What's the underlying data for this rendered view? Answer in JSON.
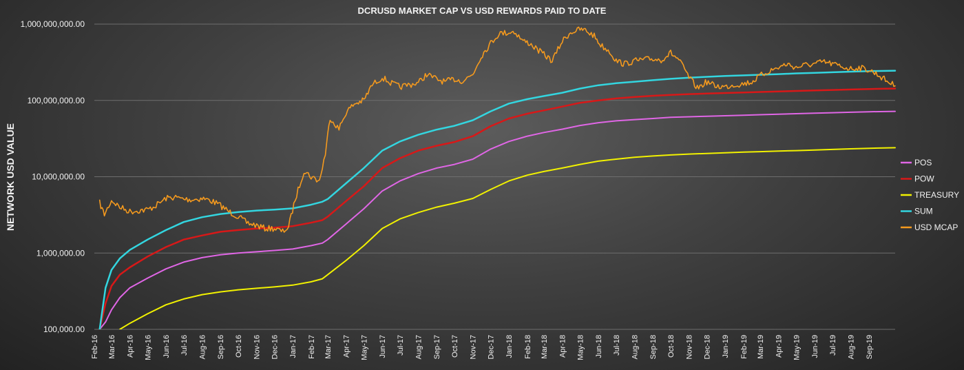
{
  "chart_data": {
    "type": "line",
    "title": "DCRUSD MARKET CAP VS USD REWARDS PAID TO DATE",
    "ylabel": "NETWORK USD VALUE",
    "xlabel": "",
    "y_scale": "log",
    "ylim": [
      100000,
      1000000000
    ],
    "grid": "horizontal major gridlines",
    "legend_position": "right",
    "y_ticks": [
      "100,000.00",
      "1,000,000.00",
      "10,000,000.00",
      "100,000,000.00",
      "1,000,000,000.00"
    ],
    "x_ticks": [
      "Feb-16",
      "Mar-16",
      "Apr-16",
      "May-16",
      "Jun-16",
      "Jul-16",
      "Aug-16",
      "Sep-16",
      "Oct-16",
      "Nov-16",
      "Dec-16",
      "Jan-17",
      "Feb-17",
      "Mar-17",
      "Apr-17",
      "May-17",
      "Jun-17",
      "Jul-17",
      "Aug-17",
      "Sep-17",
      "Oct-17",
      "Nov-17",
      "Dec-17",
      "Jan-18",
      "Feb-18",
      "Mar-18",
      "Apr-18",
      "May-18",
      "Jun-18",
      "Jul-18",
      "Aug-18",
      "Sep-18",
      "Oct-18",
      "Nov-18",
      "Dec-18",
      "Jan-19",
      "Feb-19",
      "Mar-19",
      "Apr-19",
      "May-19",
      "Jun-19",
      "Jul-19",
      "Aug-19",
      "Sep-19"
    ],
    "x_range": [
      "2016-02-01",
      "2019-10-15"
    ],
    "series": [
      {
        "name": "POS",
        "color": "#e066e6",
        "width": 2,
        "x": [
          "2016-02-10",
          "2016-02-20",
          "2016-03-01",
          "2016-03-15",
          "2016-04-01",
          "2016-05-01",
          "2016-06-01",
          "2016-07-01",
          "2016-08-01",
          "2016-09-01",
          "2016-10-01",
          "2016-11-01",
          "2016-12-01",
          "2017-01-01",
          "2017-02-01",
          "2017-02-20",
          "2017-03-01",
          "2017-04-01",
          "2017-05-01",
          "2017-06-01",
          "2017-07-01",
          "2017-08-01",
          "2017-09-01",
          "2017-10-01",
          "2017-11-01",
          "2017-12-01",
          "2018-01-01",
          "2018-02-01",
          "2018-03-01",
          "2018-04-01",
          "2018-05-01",
          "2018-06-01",
          "2018-07-01",
          "2018-08-01",
          "2018-09-01",
          "2018-10-01",
          "2018-11-01",
          "2018-12-01",
          "2019-01-01",
          "2019-02-01",
          "2019-03-01",
          "2019-04-01",
          "2019-05-01",
          "2019-06-01",
          "2019-07-01",
          "2019-08-01",
          "2019-09-01",
          "2019-10-15"
        ],
        "y": [
          80000,
          125000,
          180000,
          260000,
          350000,
          470000,
          620000,
          760000,
          870000,
          950000,
          1000000,
          1040000,
          1080000,
          1130000,
          1250000,
          1350000,
          1500000,
          2400000,
          3800000,
          6500000,
          8800000,
          11000000,
          13000000,
          14500000,
          17000000,
          23000000,
          29000000,
          34000000,
          38000000,
          42000000,
          47000000,
          51000000,
          54000000,
          56000000,
          58000000,
          60000000,
          61000000,
          62000000,
          63000000,
          64000000,
          65000000,
          66000000,
          67000000,
          68000000,
          69000000,
          70000000,
          71000000,
          72000000
        ]
      },
      {
        "name": "POW",
        "color": "#d81818",
        "width": 2.5,
        "x": [
          "2016-02-10",
          "2016-02-20",
          "2016-03-01",
          "2016-03-15",
          "2016-04-01",
          "2016-05-01",
          "2016-06-01",
          "2016-07-01",
          "2016-08-01",
          "2016-09-01",
          "2016-10-01",
          "2016-11-01",
          "2016-12-01",
          "2017-01-01",
          "2017-02-01",
          "2017-02-20",
          "2017-03-01",
          "2017-04-01",
          "2017-05-01",
          "2017-06-01",
          "2017-07-01",
          "2017-08-01",
          "2017-09-01",
          "2017-10-01",
          "2017-11-01",
          "2017-12-01",
          "2018-01-01",
          "2018-02-01",
          "2018-03-01",
          "2018-04-01",
          "2018-05-01",
          "2018-06-01",
          "2018-07-01",
          "2018-08-01",
          "2018-09-01",
          "2018-10-01",
          "2018-11-01",
          "2018-12-01",
          "2019-01-01",
          "2019-02-01",
          "2019-03-01",
          "2019-04-01",
          "2019-05-01",
          "2019-06-01",
          "2019-07-01",
          "2019-08-01",
          "2019-09-01",
          "2019-10-15"
        ],
        "y": [
          90000,
          220000,
          370000,
          520000,
          650000,
          900000,
          1200000,
          1500000,
          1700000,
          1900000,
          2000000,
          2100000,
          2150000,
          2250000,
          2500000,
          2700000,
          3000000,
          4800000,
          7500000,
          13000000,
          17500000,
          22000000,
          25500000,
          28500000,
          34000000,
          46000000,
          58000000,
          67000000,
          74000000,
          83000000,
          93000000,
          100000000,
          106000000,
          111000000,
          115000000,
          118000000,
          121000000,
          123000000,
          125000000,
          127000000,
          129000000,
          131000000,
          133000000,
          135000000,
          137000000,
          139000000,
          141000000,
          143000000
        ]
      },
      {
        "name": "TREASURY",
        "color": "#f2f200",
        "width": 2,
        "x": [
          "2016-03-15",
          "2016-04-01",
          "2016-05-01",
          "2016-06-01",
          "2016-07-01",
          "2016-08-01",
          "2016-09-01",
          "2016-10-01",
          "2016-11-01",
          "2016-12-01",
          "2017-01-01",
          "2017-02-01",
          "2017-02-20",
          "2017-03-01",
          "2017-04-01",
          "2017-05-01",
          "2017-06-01",
          "2017-07-01",
          "2017-08-01",
          "2017-09-01",
          "2017-10-01",
          "2017-11-01",
          "2017-12-01",
          "2018-01-01",
          "2018-02-01",
          "2018-03-01",
          "2018-04-01",
          "2018-05-01",
          "2018-06-01",
          "2018-07-01",
          "2018-08-01",
          "2018-09-01",
          "2018-10-01",
          "2018-11-01",
          "2018-12-01",
          "2019-01-01",
          "2019-02-01",
          "2019-03-01",
          "2019-04-01",
          "2019-05-01",
          "2019-06-01",
          "2019-07-01",
          "2019-08-01",
          "2019-09-01",
          "2019-10-15"
        ],
        "y": [
          100000,
          120000,
          160000,
          210000,
          250000,
          285000,
          310000,
          330000,
          345000,
          360000,
          380000,
          420000,
          460000,
          520000,
          800000,
          1250000,
          2100000,
          2800000,
          3400000,
          4000000,
          4500000,
          5200000,
          6800000,
          8800000,
          10500000,
          11700000,
          13000000,
          14500000,
          16000000,
          17000000,
          18000000,
          18700000,
          19300000,
          19800000,
          20200000,
          20600000,
          21000000,
          21300000,
          21700000,
          22000000,
          22400000,
          22800000,
          23200000,
          23600000,
          24000000
        ]
      },
      {
        "name": "SUM",
        "color": "#33d6e0",
        "width": 2.5,
        "x": [
          "2016-02-10",
          "2016-02-20",
          "2016-03-01",
          "2016-03-15",
          "2016-04-01",
          "2016-05-01",
          "2016-06-01",
          "2016-07-01",
          "2016-08-01",
          "2016-09-01",
          "2016-10-01",
          "2016-11-01",
          "2016-12-01",
          "2017-01-01",
          "2017-02-01",
          "2017-02-20",
          "2017-03-01",
          "2017-04-01",
          "2017-05-01",
          "2017-06-01",
          "2017-07-01",
          "2017-08-01",
          "2017-09-01",
          "2017-10-01",
          "2017-11-01",
          "2017-12-01",
          "2018-01-01",
          "2018-02-01",
          "2018-03-01",
          "2018-04-01",
          "2018-05-01",
          "2018-06-01",
          "2018-07-01",
          "2018-08-01",
          "2018-09-01",
          "2018-10-01",
          "2018-11-01",
          "2018-12-01",
          "2019-01-01",
          "2019-02-01",
          "2019-03-01",
          "2019-04-01",
          "2019-05-01",
          "2019-06-01",
          "2019-07-01",
          "2019-08-01",
          "2019-09-01",
          "2019-10-15"
        ],
        "y": [
          100000,
          350000,
          600000,
          850000,
          1100000,
          1500000,
          2000000,
          2550000,
          2950000,
          3250000,
          3450000,
          3600000,
          3700000,
          3850000,
          4300000,
          4700000,
          5100000,
          8200000,
          13000000,
          22000000,
          29000000,
          35500000,
          41500000,
          46500000,
          55000000,
          72000000,
          91000000,
          104000000,
          114000000,
          126000000,
          143000000,
          158000000,
          168000000,
          176000000,
          184000000,
          192000000,
          199000000,
          204000000,
          209000000,
          213000000,
          217000000,
          221000000,
          226000000,
          230000000,
          234000000,
          238000000,
          242000000,
          245000000
        ]
      },
      {
        "name": "USD MCAP",
        "color": "#f59a1e",
        "width": 1.6,
        "noisy": true,
        "x": [
          "2016-02-10",
          "2016-02-18",
          "2016-03-01",
          "2016-03-15",
          "2016-04-01",
          "2016-04-15",
          "2016-05-01",
          "2016-05-15",
          "2016-06-01",
          "2016-06-15",
          "2016-07-01",
          "2016-07-15",
          "2016-08-01",
          "2016-08-15",
          "2016-09-01",
          "2016-09-15",
          "2016-10-01",
          "2016-10-15",
          "2016-11-01",
          "2016-11-15",
          "2016-12-01",
          "2016-12-15",
          "2016-12-25",
          "2017-01-05",
          "2017-01-20",
          "2017-02-01",
          "2017-02-15",
          "2017-02-25",
          "2017-03-05",
          "2017-03-20",
          "2017-04-01",
          "2017-04-15",
          "2017-05-01",
          "2017-05-15",
          "2017-06-01",
          "2017-06-15",
          "2017-07-01",
          "2017-07-15",
          "2017-08-01",
          "2017-08-15",
          "2017-09-01",
          "2017-09-15",
          "2017-10-01",
          "2017-10-15",
          "2017-11-01",
          "2017-11-15",
          "2017-12-01",
          "2017-12-15",
          "2018-01-01",
          "2018-01-10",
          "2018-01-25",
          "2018-02-05",
          "2018-02-20",
          "2018-03-01",
          "2018-03-15",
          "2018-04-01",
          "2018-04-15",
          "2018-05-01",
          "2018-05-10",
          "2018-05-25",
          "2018-06-05",
          "2018-06-20",
          "2018-07-01",
          "2018-07-15",
          "2018-08-01",
          "2018-08-15",
          "2018-09-01",
          "2018-09-15",
          "2018-10-01",
          "2018-10-15",
          "2018-11-01",
          "2018-11-15",
          "2018-12-01",
          "2018-12-15",
          "2019-01-01",
          "2019-01-15",
          "2019-02-01",
          "2019-02-15",
          "2019-03-01",
          "2019-03-15",
          "2019-04-01",
          "2019-04-15",
          "2019-05-01",
          "2019-05-15",
          "2019-06-01",
          "2019-06-15",
          "2019-07-01",
          "2019-07-15",
          "2019-08-01",
          "2019-08-15",
          "2019-09-01",
          "2019-09-15",
          "2019-10-01",
          "2019-10-15"
        ],
        "y": [
          4500000,
          3200000,
          4900000,
          4000000,
          3500000,
          3600000,
          3700000,
          4200000,
          5200000,
          5400000,
          5100000,
          5000000,
          5200000,
          4900000,
          4200000,
          3500000,
          3000000,
          2500000,
          2300000,
          2100000,
          2100000,
          1900000,
          2200000,
          5000000,
          12000000,
          10000000,
          8800000,
          20000000,
          60000000,
          42000000,
          70000000,
          90000000,
          100000000,
          160000000,
          200000000,
          170000000,
          150000000,
          160000000,
          170000000,
          220000000,
          190000000,
          175000000,
          190000000,
          180000000,
          220000000,
          380000000,
          560000000,
          750000000,
          780000000,
          800000000,
          600000000,
          560000000,
          450000000,
          400000000,
          330000000,
          600000000,
          780000000,
          850000000,
          830000000,
          700000000,
          530000000,
          440000000,
          330000000,
          300000000,
          330000000,
          340000000,
          350000000,
          340000000,
          420000000,
          340000000,
          200000000,
          145000000,
          175000000,
          155000000,
          150000000,
          160000000,
          165000000,
          175000000,
          210000000,
          240000000,
          270000000,
          300000000,
          270000000,
          290000000,
          300000000,
          320000000,
          300000000,
          280000000,
          260000000,
          270000000,
          250000000,
          220000000,
          180000000,
          155000000
        ]
      }
    ]
  }
}
